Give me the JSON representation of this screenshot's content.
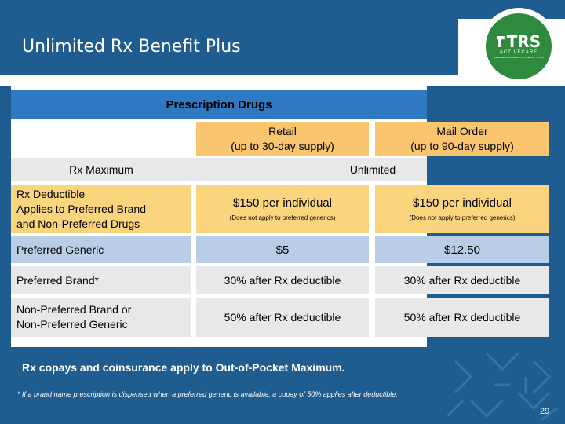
{
  "slide": {
    "title": "Unlimited Rx Benefit Plus",
    "page_number": "29"
  },
  "logo": {
    "mark": "TRS",
    "sub": "ACTIVECARE",
    "tiny": "TEACHER RETIREMENT SYSTEM OF TEXAS"
  },
  "table": {
    "section_header": "Prescription Drugs",
    "columns": [
      {
        "line1": "Retail",
        "line2": "(up to 30-day supply)"
      },
      {
        "line1": "Mail Order",
        "line2": "(up to 90-day supply)"
      }
    ],
    "rx_maximum": {
      "label": "Rx Maximum",
      "value": "Unlimited"
    },
    "deductible": {
      "label": "Rx Deductible\nApplies to Preferred Brand and Non-Preferred Drugs",
      "label_line1": "Rx Deductible",
      "label_line2": "Applies to Preferred Brand",
      "label_line3": "and Non-Preferred Drugs",
      "retail_main": "$150 per individual",
      "retail_note": "(Does not apply to preferred generics)",
      "mail_main": "$150 per individual",
      "mail_note": "(Does not apply to preferred generics)"
    },
    "preferred_generic": {
      "label": "Preferred Generic",
      "retail": "$5",
      "mail": "$12.50"
    },
    "preferred_brand": {
      "label": "Preferred Brand*",
      "retail": "30% after Rx deductible",
      "mail": "30% after Rx deductible"
    },
    "non_preferred": {
      "label_line1": "Non-Preferred Brand or",
      "label_line2": "Non-Preferred Generic",
      "retail": "50% after Rx deductible",
      "mail": "50% after Rx deductible"
    }
  },
  "footnotes": {
    "main": "Rx copays and coinsurance apply to Out-of-Pocket Maximum.",
    "small": "* If a brand name prescription is dispensed when a preferred generic is available, a copay of 50% applies after deductible."
  },
  "colors": {
    "brand_blue": "#1f5c8f",
    "header_blue": "#2f78c2",
    "orange": "#f9c56e",
    "yellow": "#fbd57d",
    "light_blue": "#b9cde7",
    "logo_green": "#2e8b3e"
  }
}
